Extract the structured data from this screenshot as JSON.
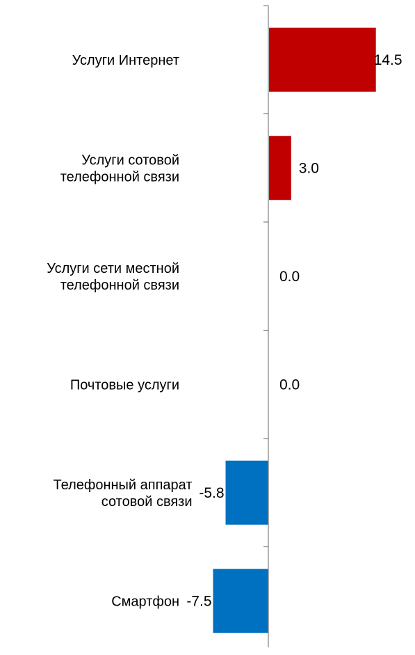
{
  "chart_data": {
    "type": "bar",
    "orientation": "horizontal",
    "categories": [
      "Услуги Интернет",
      "Услуги сотовой телефонной связи",
      "Услуги сети местной телефонной связи",
      "Почтовые услуги",
      "Телефонный аппарат сотовой связи",
      "Смартфон"
    ],
    "category_lines": [
      [
        "Услуги Интернет"
      ],
      [
        "Услуги сотовой",
        "телефонной связи"
      ],
      [
        "Услуги сети местной",
        "телефонной связи"
      ],
      [
        "Почтовые услуги"
      ],
      [
        "Телефонный аппарат",
        "сотовой связи"
      ],
      [
        "Смартфон"
      ]
    ],
    "values": [
      14.5,
      3.0,
      0.0,
      0.0,
      -5.8,
      -7.5
    ],
    "value_labels": [
      "14.5",
      "3.0",
      "0.0",
      "0.0",
      "-5.8",
      "-7.5"
    ],
    "colors": {
      "positive": "#C00000",
      "negative": "#0070C0",
      "axis": "#808080"
    },
    "title": "",
    "xlabel": "",
    "ylabel": "",
    "grid": false,
    "legend": false
  }
}
